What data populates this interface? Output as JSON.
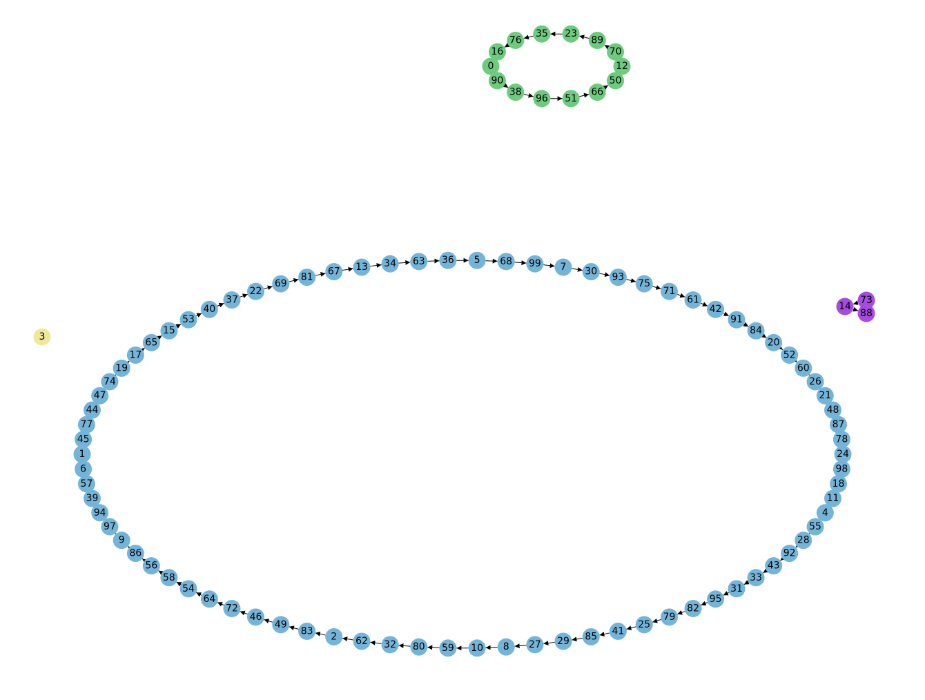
{
  "colors": {
    "background": "#ffffff",
    "edge": "#000000",
    "groups": {
      "blue": "#74b4d8",
      "green": "#6ccb7c",
      "purple": "#a64ae0",
      "yellow": "#efe89c"
    }
  },
  "components": [
    {
      "group": "blue",
      "direction": "clockwise",
      "nodes": [
        "1",
        "6",
        "57",
        "39",
        "94",
        "97",
        "9",
        "86",
        "56",
        "58",
        "54",
        "64",
        "72",
        "46",
        "49",
        "83",
        "2",
        "62",
        "32",
        "80",
        "59",
        "10",
        "8",
        "27",
        "29",
        "85",
        "41",
        "25",
        "79",
        "82",
        "95",
        "31",
        "33",
        "43",
        "92",
        "28",
        "55",
        "4",
        "11",
        "18",
        "98",
        "24",
        "78",
        "87",
        "48",
        "21",
        "26",
        "60",
        "52",
        "20",
        "84",
        "91",
        "42",
        "61",
        "71",
        "75",
        "93",
        "30",
        "7",
        "99",
        "68",
        "5",
        "36",
        "63",
        "34",
        "13",
        "67",
        "81",
        "69",
        "22",
        "37",
        "40",
        "53",
        "15",
        "65",
        "17",
        "19",
        "74",
        "47",
        "44",
        "77",
        "45"
      ],
      "edges": [
        [
          "6",
          "45"
        ],
        [
          "57",
          "6"
        ],
        [
          "39",
          "57"
        ],
        [
          "94",
          "39"
        ],
        [
          "97",
          "94"
        ],
        [
          "9",
          "97"
        ],
        [
          "86",
          "9"
        ],
        [
          "56",
          "86"
        ],
        [
          "58",
          "56"
        ],
        [
          "54",
          "58"
        ],
        [
          "64",
          "54"
        ],
        [
          "72",
          "64"
        ],
        [
          "46",
          "72"
        ],
        [
          "49",
          "46"
        ],
        [
          "83",
          "49"
        ],
        [
          "2",
          "83"
        ],
        [
          "62",
          "2"
        ],
        [
          "32",
          "62"
        ],
        [
          "80",
          "32"
        ],
        [
          "59",
          "80"
        ],
        [
          "10",
          "59"
        ],
        [
          "8",
          "10"
        ],
        [
          "27",
          "8"
        ],
        [
          "29",
          "27"
        ],
        [
          "85",
          "29"
        ],
        [
          "41",
          "85"
        ],
        [
          "25",
          "41"
        ],
        [
          "79",
          "25"
        ],
        [
          "82",
          "79"
        ],
        [
          "95",
          "82"
        ],
        [
          "31",
          "95"
        ],
        [
          "33",
          "31"
        ],
        [
          "43",
          "33"
        ],
        [
          "92",
          "43"
        ],
        [
          "28",
          "92"
        ],
        [
          "55",
          "28"
        ],
        [
          "4",
          "55"
        ],
        [
          "11",
          "4"
        ],
        [
          "18",
          "11"
        ],
        [
          "98",
          "18"
        ],
        [
          "24",
          "98"
        ],
        [
          "78",
          "24"
        ],
        [
          "87",
          "78"
        ],
        [
          "48",
          "87"
        ],
        [
          "21",
          "48"
        ],
        [
          "26",
          "21"
        ],
        [
          "60",
          "26"
        ],
        [
          "52",
          "60"
        ],
        [
          "20",
          "52"
        ],
        [
          "84",
          "20"
        ],
        [
          "91",
          "84"
        ],
        [
          "42",
          "91"
        ],
        [
          "61",
          "42"
        ],
        [
          "71",
          "61"
        ],
        [
          "75",
          "71"
        ],
        [
          "93",
          "75"
        ],
        [
          "30",
          "93"
        ],
        [
          "7",
          "30"
        ],
        [
          "99",
          "7"
        ],
        [
          "68",
          "99"
        ],
        [
          "5",
          "68"
        ],
        [
          "36",
          "5"
        ],
        [
          "63",
          "36"
        ],
        [
          "34",
          "63"
        ],
        [
          "13",
          "34"
        ],
        [
          "67",
          "13"
        ],
        [
          "81",
          "67"
        ],
        [
          "69",
          "81"
        ],
        [
          "22",
          "69"
        ],
        [
          "37",
          "22"
        ],
        [
          "40",
          "37"
        ],
        [
          "53",
          "40"
        ],
        [
          "15",
          "53"
        ],
        [
          "65",
          "15"
        ],
        [
          "17",
          "65"
        ],
        [
          "19",
          "17"
        ],
        [
          "74",
          "19"
        ],
        [
          "47",
          "74"
        ],
        [
          "44",
          "47"
        ],
        [
          "77",
          "44"
        ],
        [
          "45",
          "1"
        ],
        [
          "1",
          "77"
        ]
      ]
    },
    {
      "group": "green",
      "direction": "clockwise",
      "nodes": [
        "0",
        "90",
        "38",
        "96",
        "51",
        "66",
        "50",
        "12",
        "70",
        "89",
        "23",
        "35",
        "76",
        "16"
      ],
      "edges": [
        [
          "90",
          "38"
        ],
        [
          "38",
          "96"
        ],
        [
          "96",
          "51"
        ],
        [
          "51",
          "66"
        ],
        [
          "66",
          "50"
        ],
        [
          "50",
          "12"
        ],
        [
          "12",
          "70"
        ],
        [
          "70",
          "89"
        ],
        [
          "89",
          "23"
        ],
        [
          "23",
          "35"
        ],
        [
          "35",
          "76"
        ],
        [
          "76",
          "16"
        ],
        [
          "16",
          "0"
        ],
        [
          "0",
          "90"
        ]
      ]
    },
    {
      "group": "purple",
      "direction": "clockwise",
      "nodes": [
        "14",
        "73",
        "88"
      ],
      "edges": [
        [
          "73",
          "14"
        ],
        [
          "14",
          "88"
        ]
      ]
    },
    {
      "group": "yellow",
      "direction": "clockwise",
      "nodes": [
        "3"
      ],
      "edges": []
    }
  ]
}
